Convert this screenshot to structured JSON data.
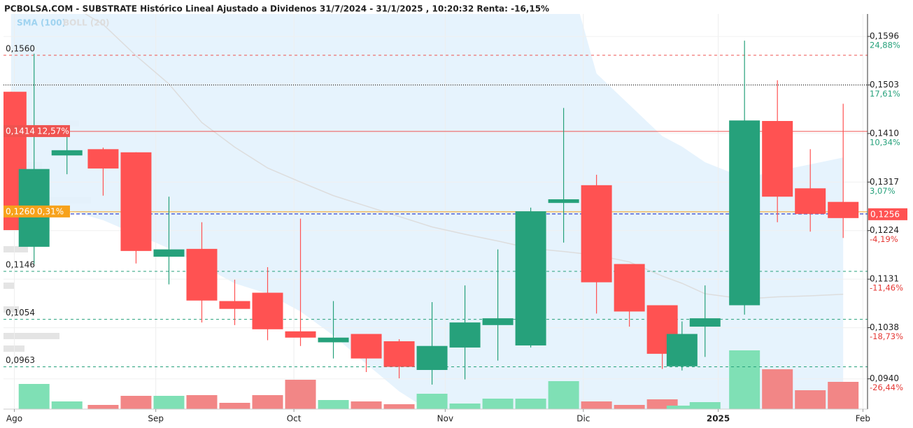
{
  "chart_data": {
    "type": "candlestick",
    "title": "PCBOLSA.COM - SUBSTRATE Histórico Lineal Ajustado a Dividenos 31/7/2024 - 31/1/2025 , 10:20:32 Renta: -16,15%",
    "legend": [
      "SMA (100)",
      "BOLL (20)"
    ],
    "up_color": "#26a17b",
    "down_color": "#ff5252",
    "up_volume_color": "#7fe0b5",
    "down_volume_color": "#f28686",
    "grid": true,
    "x": [
      0,
      0.7,
      1.7,
      2.8,
      3.8,
      4.8,
      5.8,
      6.8,
      7.8,
      8.8,
      9.8,
      10.8,
      11.8,
      12.8,
      13.8,
      14.8,
      15.8,
      16.8,
      17.8,
      18.8,
      19.8,
      20.4,
      21.1,
      22.3,
      23.3,
      24.3,
      25.3
    ],
    "open": [
      0.149,
      0.1193,
      0.1368,
      0.138,
      0.1374,
      0.1174,
      0.1189,
      0.1089,
      0.1105,
      0.1031,
      0.101,
      0.1026,
      0.1012,
      0.0957,
      0.1,
      0.1043,
      0.1004,
      0.1277,
      0.1311,
      0.116,
      0.1081,
      0.0964,
      0.104,
      0.1081,
      0.1434,
      0.1305,
      0.1279
    ],
    "high": [
      0.149,
      0.1563,
      0.1405,
      0.1383,
      0.1374,
      0.1289,
      0.124,
      0.113,
      0.1154,
      0.1247,
      0.1089,
      0.1026,
      0.1016,
      0.1087,
      0.1119,
      0.1188,
      0.1268,
      0.1459,
      0.1331,
      0.116,
      0.1081,
      0.105,
      0.1119,
      0.1588,
      0.1512,
      0.138,
      0.1467
    ],
    "low": [
      0.1225,
      0.116,
      0.1332,
      0.1291,
      0.1161,
      0.1121,
      0.1048,
      0.1043,
      0.1014,
      0.1003,
      0.0979,
      0.0953,
      0.0941,
      0.0929,
      0.0939,
      0.0975,
      0.1,
      0.1201,
      0.1065,
      0.104,
      0.0959,
      0.0956,
      0.0982,
      0.1063,
      0.124,
      0.1222,
      0.121
    ],
    "close": [
      0.1225,
      0.1342,
      0.1378,
      0.1343,
      0.1185,
      0.1188,
      0.109,
      0.1074,
      0.1035,
      0.1019,
      0.1019,
      0.0979,
      0.0963,
      0.1003,
      0.1048,
      0.1056,
      0.1261,
      0.1284,
      0.1125,
      0.1069,
      0.0988,
      0.1026,
      0.1056,
      0.1435,
      0.1289,
      0.1256,
      0.1248
    ],
    "volume": [
      null,
      36,
      11,
      6,
      19,
      19,
      20,
      9,
      20,
      42,
      13,
      11,
      7,
      22,
      8,
      15,
      15,
      40,
      11,
      6,
      14,
      5,
      10,
      84,
      57,
      27,
      39
    ],
    "sma": [
      0.17,
      0.168,
      0.166,
      0.1619,
      0.1559,
      0.1505,
      0.1431,
      0.1384,
      0.1344,
      0.1317,
      0.1291,
      0.1271,
      0.1251,
      0.1231,
      0.1217,
      0.1204,
      0.119,
      0.1184,
      0.1177,
      0.1164,
      0.1137,
      0.1123,
      0.1103,
      0.1093,
      0.1097,
      0.1099,
      0.1102
    ],
    "boll_upper": [
      0.175,
      0.175,
      0.175,
      0.175,
      0.175,
      0.175,
      0.175,
      0.175,
      0.175,
      0.175,
      0.175,
      0.175,
      0.175,
      0.175,
      0.175,
      0.175,
      0.175,
      0.175,
      0.1525,
      0.1465,
      0.1405,
      0.1385,
      0.1355,
      0.1325,
      0.1338,
      0.1351,
      0.1364
    ],
    "boll_lower": [
      0.1284,
      0.1277,
      0.1264,
      0.1244,
      0.1217,
      0.119,
      0.1157,
      0.1123,
      0.1103,
      0.1069,
      0.1023,
      0.0969,
      0.0916,
      0.0876,
      0.085,
      0.085,
      0.085,
      0.085,
      0.085,
      0.085,
      0.085,
      0.085,
      0.085,
      0.085,
      0.085,
      0.085,
      0.085
    ],
    "xlim": [
      -0.23,
      26.04
    ],
    "xticks": [
      {
        "value": 0.1,
        "label": "Ago"
      },
      {
        "value": 4.4,
        "label": "Sep"
      },
      {
        "value": 8.6,
        "label": "Oct"
      },
      {
        "value": 13.2,
        "label": "Nov"
      },
      {
        "value": 17.4,
        "label": "Dic"
      },
      {
        "value": 21.5,
        "label": "2025"
      },
      {
        "value": 25.9,
        "label": "Feb"
      }
    ],
    "ylim": [
      0.0882,
      0.1639
    ],
    "yticks": [
      {
        "value": 0.1596,
        "label": "0,1596"
      },
      {
        "value": 0.1503,
        "label": "0,1503"
      },
      {
        "value": 0.141,
        "label": "0,1410"
      },
      {
        "value": 0.1317,
        "label": "0,1317"
      },
      {
        "value": 0.1224,
        "label": "0,1224"
      },
      {
        "value": 0.1131,
        "label": "0,1131"
      },
      {
        "value": 0.1038,
        "label": "0,1038"
      },
      {
        "value": 0.094,
        "label": "0,0940"
      }
    ],
    "ytick_changes": [
      "24,88%",
      "17,61%",
      "10,34%",
      "3,07%",
      "-4,19%",
      "-11,46%",
      "-18,73%",
      "-26,44%"
    ],
    "levels": [
      {
        "value": 0.156,
        "label": "0,1560",
        "color": "#ef5350",
        "style": "dashed"
      },
      {
        "value": 0.1503,
        "color": "#000000",
        "style": "dotted"
      },
      {
        "value": 0.1414,
        "label": "0,1414",
        "change": "12,57%",
        "color": "#ef5350",
        "style": "solid"
      },
      {
        "value": 0.126,
        "label": "0,1260",
        "change": "0,31%",
        "color": "#f7a21b",
        "style": "solid"
      },
      {
        "value": 0.1146,
        "label": "0,1146",
        "color": "#26a17b",
        "style": "dashed"
      },
      {
        "value": 0.1054,
        "label": "0,1054",
        "color": "#26a17b",
        "style": "dashed"
      },
      {
        "value": 0.0963,
        "label": "0,0963",
        "color": "#26a17b",
        "style": "dashed"
      }
    ],
    "last_price": {
      "value": 0.1256,
      "label": "0,1256",
      "color": "#ff5252",
      "line_color": "#3344cc"
    }
  }
}
